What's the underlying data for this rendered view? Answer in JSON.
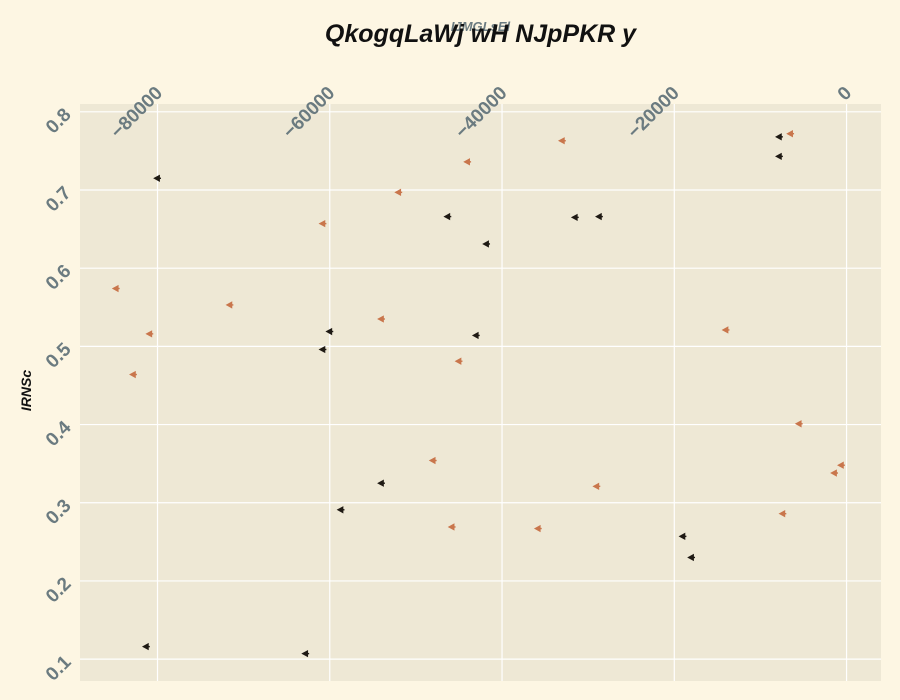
{
  "chart_data": {
    "type": "scatter",
    "title": "QkogqLaWj wH NJpPKR y",
    "xlabel": "IJMGLsEl",
    "ylabel": "IRNSc",
    "xlim": [
      -89000,
      4000
    ],
    "ylim": [
      0.072,
      0.81
    ],
    "x_axis_position": "top",
    "x_ticks": [
      -80000,
      -60000,
      -40000,
      -20000,
      0
    ],
    "x_tick_labels": [
      "−80000",
      "−60000",
      "−40000",
      "−20000",
      "0"
    ],
    "y_ticks": [
      0.1,
      0.2,
      0.3,
      0.4,
      0.5,
      0.6,
      0.7,
      0.8
    ],
    "y_tick_labels": [
      "0.1",
      "0.2",
      "0.3",
      "0.4",
      "0.5",
      "0.6",
      "0.7",
      "0.8"
    ],
    "grid": true,
    "legend": "none",
    "marker": "left-pointing triangle",
    "colors": {
      "background": "#fdf6e3",
      "plot_background": "#eee8d5",
      "grid": "#ffffff",
      "tick_label": "#6b7b80"
    },
    "series": [
      {
        "color": "#1f1a14",
        "points": [
          {
            "x": -80000,
            "y": 0.715
          },
          {
            "x": -81300,
            "y": 0.116
          },
          {
            "x": -62800,
            "y": 0.107
          },
          {
            "x": -60000,
            "y": 0.519
          },
          {
            "x": -60800,
            "y": 0.496
          },
          {
            "x": -58700,
            "y": 0.291
          },
          {
            "x": -54000,
            "y": 0.325
          },
          {
            "x": -46300,
            "y": 0.666
          },
          {
            "x": -41800,
            "y": 0.631
          },
          {
            "x": -43000,
            "y": 0.514
          },
          {
            "x": -31500,
            "y": 0.665
          },
          {
            "x": -28700,
            "y": 0.666
          },
          {
            "x": -19000,
            "y": 0.257
          },
          {
            "x": -18000,
            "y": 0.23
          },
          {
            "x": -7800,
            "y": 0.768
          },
          {
            "x": -7800,
            "y": 0.743
          }
        ]
      },
      {
        "color": "#c9764c",
        "points": [
          {
            "x": -84800,
            "y": 0.574
          },
          {
            "x": -80900,
            "y": 0.516
          },
          {
            "x": -82800,
            "y": 0.464
          },
          {
            "x": -71600,
            "y": 0.553
          },
          {
            "x": -60800,
            "y": 0.657
          },
          {
            "x": -54000,
            "y": 0.535
          },
          {
            "x": -52000,
            "y": 0.697
          },
          {
            "x": -44000,
            "y": 0.736
          },
          {
            "x": -45000,
            "y": 0.481
          },
          {
            "x": -48000,
            "y": 0.354
          },
          {
            "x": -45800,
            "y": 0.269
          },
          {
            "x": -35800,
            "y": 0.267
          },
          {
            "x": -33000,
            "y": 0.763
          },
          {
            "x": -29000,
            "y": 0.321
          },
          {
            "x": -14000,
            "y": 0.521
          },
          {
            "x": -6500,
            "y": 0.772
          },
          {
            "x": -5500,
            "y": 0.401
          },
          {
            "x": -7400,
            "y": 0.286
          },
          {
            "x": -1400,
            "y": 0.338
          },
          {
            "x": -600,
            "y": 0.348
          }
        ]
      }
    ]
  }
}
